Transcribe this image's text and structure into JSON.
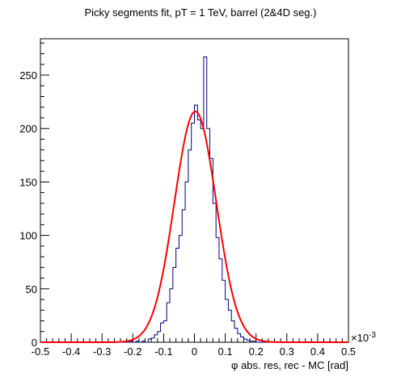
{
  "chart_data": {
    "type": "histogram",
    "title": "Picky segments fit, pT = 1 TeV, barrel (2&4D seg.)",
    "xlabel": "φ abs. res, rec - MC [rad]",
    "ylabel": "",
    "x_scale_label": "×10",
    "x_scale_exponent": "-3",
    "xlim": [
      -0.5,
      0.5
    ],
    "ylim": [
      0,
      284
    ],
    "x_ticks": [
      {
        "value": -0.5,
        "label": "-0.5"
      },
      {
        "value": -0.4,
        "label": "-0.4"
      },
      {
        "value": -0.3,
        "label": "-0.3"
      },
      {
        "value": -0.2,
        "label": "-0.2"
      },
      {
        "value": -0.1,
        "label": "-0.1"
      },
      {
        "value": 0.0,
        "label": "0"
      },
      {
        "value": 0.1,
        "label": "0.1"
      },
      {
        "value": 0.2,
        "label": "0.2"
      },
      {
        "value": 0.3,
        "label": "0.3"
      },
      {
        "value": 0.4,
        "label": "0.4"
      },
      {
        "value": 0.5,
        "label": "0.5"
      }
    ],
    "y_ticks": [
      {
        "value": 0,
        "label": "0"
      },
      {
        "value": 50,
        "label": "50"
      },
      {
        "value": 100,
        "label": "100"
      },
      {
        "value": 150,
        "label": "150"
      },
      {
        "value": 200,
        "label": "200"
      },
      {
        "value": 250,
        "label": "250"
      }
    ],
    "bin_edges_start": -0.5,
    "bin_width": 0.01,
    "bin_counts": [
      0,
      0,
      0,
      0,
      0,
      0,
      0,
      0,
      0,
      0,
      0,
      0,
      0,
      0,
      0,
      0,
      0,
      0,
      0,
      0,
      0,
      0,
      0,
      0,
      0,
      0,
      0,
      0,
      0,
      1,
      0,
      1,
      0,
      1,
      0,
      3,
      4,
      7,
      10,
      18,
      20,
      37,
      50,
      70,
      88,
      100,
      124,
      150,
      180,
      205,
      222,
      208,
      200,
      267,
      200,
      172,
      130,
      98,
      78,
      58,
      40,
      30,
      20,
      13,
      8,
      5,
      3,
      2,
      1,
      1,
      0,
      0,
      0,
      0,
      0,
      0,
      0,
      0,
      0,
      0,
      0,
      0,
      0,
      0,
      0,
      0,
      0,
      0,
      0,
      0,
      0,
      0,
      0,
      0,
      0,
      0,
      0,
      0,
      0,
      0
    ],
    "histogram_color": "#00007f",
    "fit": {
      "type": "gaussian",
      "amplitude": 216,
      "mean": 0.003,
      "sigma": 0.068,
      "color": "#ff0000"
    }
  }
}
